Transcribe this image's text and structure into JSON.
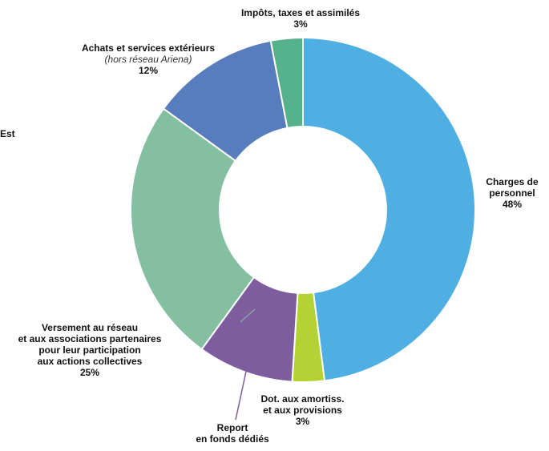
{
  "chart_data": {
    "type": "pie",
    "donut": true,
    "start_angle_deg": 0,
    "direction": "clockwise",
    "slices": [
      {
        "label": "Charges de personnel",
        "value": 48,
        "pct_text": "48%",
        "color": "#4FAEE2"
      },
      {
        "label": "Dot. aux amortiss. et aux provisions",
        "value": 3,
        "pct_text": "3%",
        "color": "#B5D234"
      },
      {
        "label": "Report en fonds dédiés",
        "value": 9,
        "pct_text": "",
        "color": "#7E5D9E"
      },
      {
        "label": "Versement au réseau et aux associations partenaires pour leur participation aux actions collectives",
        "value": 25,
        "pct_text": "25%",
        "color": "#85BFA1"
      },
      {
        "label": "Achats et services extérieurs",
        "value": 12,
        "pct_text": "12%",
        "color": "#587DBD"
      },
      {
        "label": "Impôts, taxes et assimilés",
        "value": 3,
        "pct_text": "3%",
        "color": "#55B28A"
      }
    ]
  },
  "labels": {
    "impots": {
      "line1": "Impôts, taxes et assimilés",
      "pct": "3%"
    },
    "achats": {
      "line1": "Achats et services extérieurs",
      "sub": "(hors réseau Ariena)",
      "pct": "12%"
    },
    "est": {
      "text": "Est"
    },
    "charges": {
      "line1": "Charges de",
      "line2": "personnel",
      "pct": "48%"
    },
    "versement": {
      "line1": "Versement au réseau",
      "line2": "et aux associations partenaires",
      "line3": "pour leur participation",
      "line4": "aux actions collectives",
      "pct": "25%"
    },
    "dot": {
      "line1": "Dot. aux amortiss.",
      "line2": "et aux provisions",
      "pct": "3%"
    },
    "report": {
      "line1": "Report",
      "line2": "en fonds dédiés"
    }
  }
}
